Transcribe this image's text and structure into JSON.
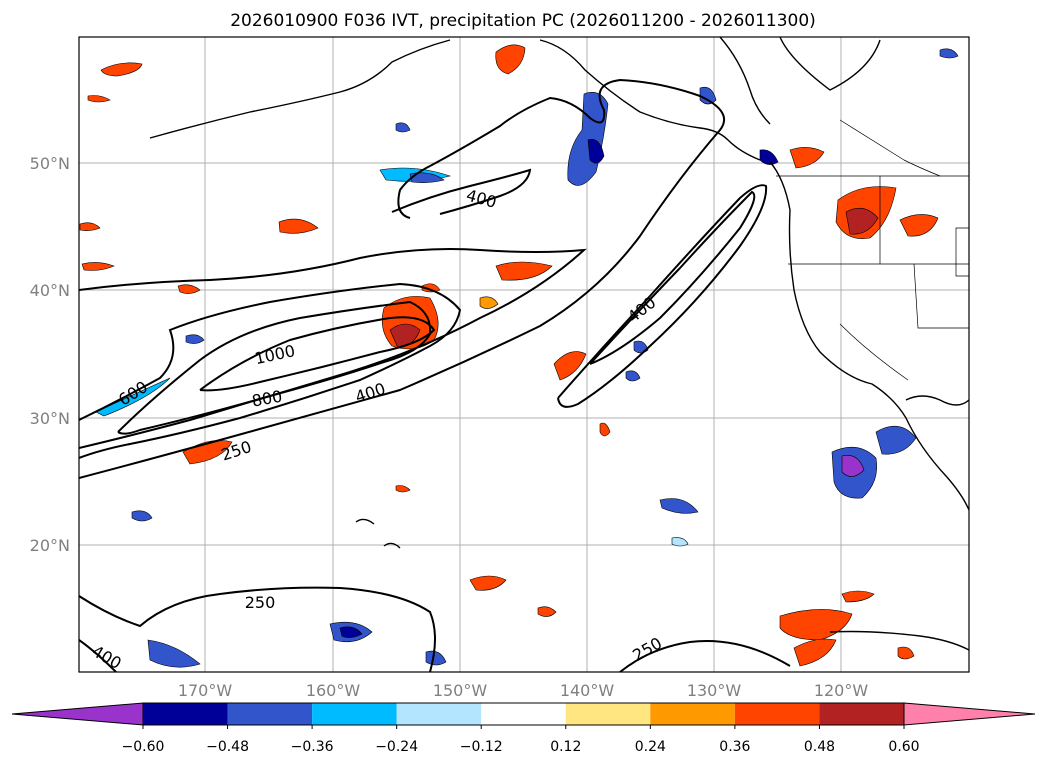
{
  "title": "2026010900 F036 IVT, precipitation PC (2026011200 - 2026011300)",
  "latitude_labels": [
    "50°N",
    "40°N",
    "30°N",
    "20°N"
  ],
  "longitude_labels": [
    "170°W",
    "160°W",
    "150°W",
    "140°W",
    "130°W",
    "120°W"
  ],
  "contour_labels": [
    "400",
    "400",
    "1000",
    "800",
    "600",
    "400",
    "250",
    "250",
    "400",
    "250"
  ],
  "colorbar": {
    "ticks": [
      "−0.60",
      "−0.48",
      "−0.36",
      "−0.24",
      "−0.12",
      "0.12",
      "0.24",
      "0.36",
      "0.48",
      "0.60"
    ],
    "under_color": "#9933cc",
    "colors": [
      "#000099",
      "#3355cc",
      "#00bbff",
      "#b3e5ff",
      "#ffffff",
      "#ffe680",
      "#ff9900",
      "#ff4400",
      "#b32222"
    ],
    "over_color": "#ff80aa"
  },
  "colors": {
    "coastline": "#000000",
    "ivt_contour": "#000000",
    "gridline": "#b0b0b0",
    "tick_label": "#808080"
  }
}
